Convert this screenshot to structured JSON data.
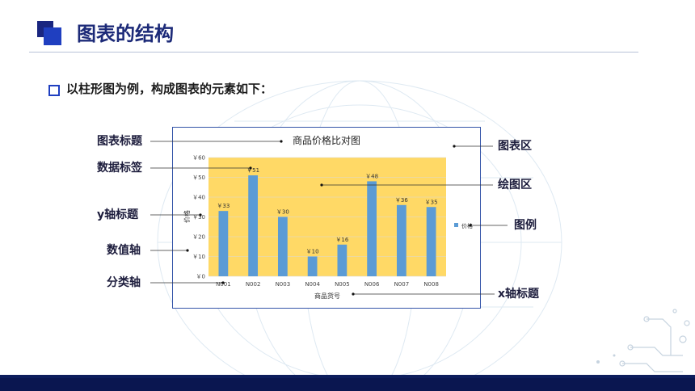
{
  "page": {
    "title": "图表的结构",
    "intro": "以柱形图为例，构成图表的元素如下："
  },
  "labels": {
    "chart_title": "图表标题",
    "data_label": "数据标签",
    "y_axis_title": "y轴标题",
    "value_axis": "数值轴",
    "category_axis": "分类轴",
    "chart_area": "图表区",
    "plot_area": "绘图区",
    "legend": "图例",
    "x_axis_title": "x轴标题"
  },
  "colors": {
    "accent": "#1c2a78",
    "bar": "#5b9bd5",
    "plot_bg": "#ffd966"
  },
  "chart_data": {
    "type": "bar",
    "title": "商品价格比对图",
    "xlabel": "商品货号",
    "ylabel": "价格",
    "categories": [
      "N001",
      "N002",
      "N003",
      "N004",
      "N005",
      "N006",
      "N007",
      "N008"
    ],
    "series": [
      {
        "name": "价格",
        "values": [
          33,
          51,
          30,
          10,
          16,
          48,
          36,
          35
        ]
      }
    ],
    "data_labels": [
      "￥33",
      "￥51",
      "￥30",
      "￥10",
      "￥16",
      "￥48",
      "￥36",
      "￥35"
    ],
    "y_ticks": [
      "￥0",
      "￥10",
      "￥20",
      "￥30",
      "￥40",
      "￥50",
      "￥60"
    ],
    "ylim": [
      0,
      60
    ],
    "legend_position": "right",
    "grid": true
  }
}
